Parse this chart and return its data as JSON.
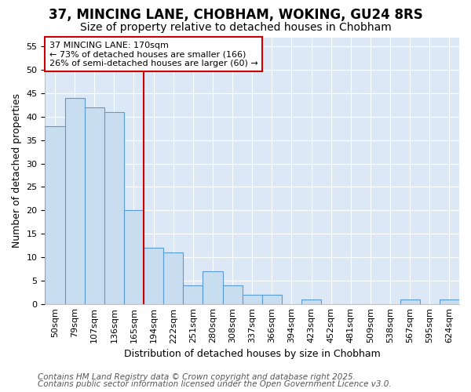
{
  "title1": "37, MINCING LANE, CHOBHAM, WOKING, GU24 8RS",
  "title2": "Size of property relative to detached houses in Chobham",
  "xlabel": "Distribution of detached houses by size in Chobham",
  "ylabel": "Number of detached properties",
  "bins": [
    "50sqm",
    "79sqm",
    "107sqm",
    "136sqm",
    "165sqm",
    "194sqm",
    "222sqm",
    "251sqm",
    "280sqm",
    "308sqm",
    "337sqm",
    "366sqm",
    "394sqm",
    "423sqm",
    "452sqm",
    "481sqm",
    "509sqm",
    "538sqm",
    "567sqm",
    "595sqm",
    "624sqm"
  ],
  "values": [
    38,
    44,
    42,
    41,
    20,
    12,
    11,
    4,
    7,
    4,
    2,
    2,
    0,
    1,
    0,
    0,
    0,
    0,
    1,
    0,
    1
  ],
  "bar_color": "#c8ddf0",
  "bar_edge_color": "#5b9bd5",
  "vline_x_index": 4,
  "vline_color": "#cc0000",
  "annotation_text": "37 MINCING LANE: 170sqm\n← 73% of detached houses are smaller (166)\n26% of semi-detached houses are larger (60) →",
  "annotation_box_color": "#ffffff",
  "annotation_box_edge": "#cc0000",
  "ylim": [
    0,
    57
  ],
  "yticks": [
    0,
    5,
    10,
    15,
    20,
    25,
    30,
    35,
    40,
    45,
    50,
    55
  ],
  "plot_bg_color": "#dce8f5",
  "fig_bg_color": "#ffffff",
  "footer1": "Contains HM Land Registry data © Crown copyright and database right 2025.",
  "footer2": "Contains public sector information licensed under the Open Government Licence v3.0.",
  "grid_color": "#ffffff",
  "title_fontsize": 12,
  "subtitle_fontsize": 10,
  "axis_label_fontsize": 9,
  "tick_fontsize": 8,
  "annotation_fontsize": 8,
  "footer_fontsize": 7.5
}
